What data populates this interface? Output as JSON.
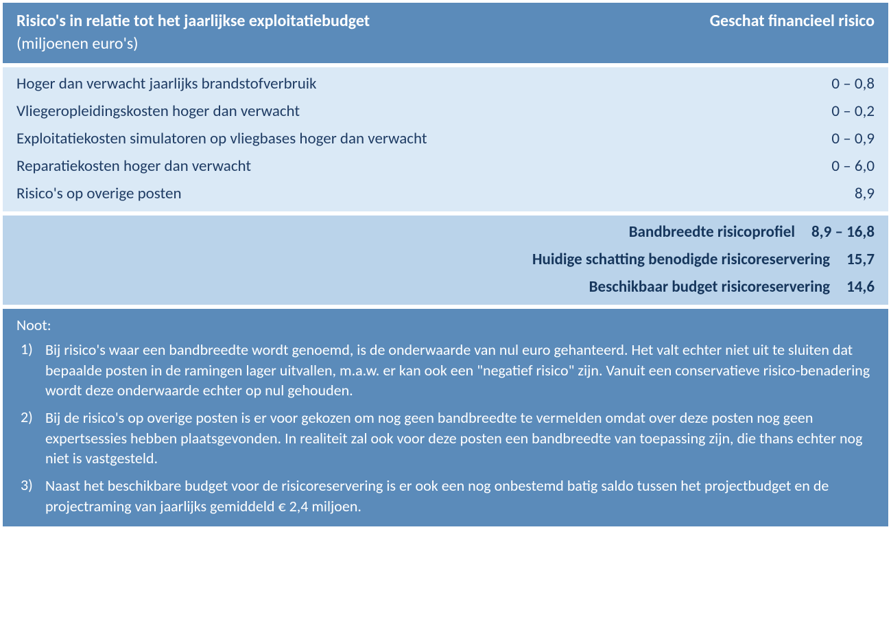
{
  "colors": {
    "band_dark": "#5b8bba",
    "band_light": "#dae9f6",
    "band_mid": "#bad3ea",
    "text_dark": "#1f3c64",
    "text_summary": "#16365c",
    "text_on_dark": "#ffffff"
  },
  "typography": {
    "font_family": "Calibri",
    "header_fontsize_pt": 18,
    "body_fontsize_pt": 17,
    "footer_fontsize_pt": 16
  },
  "header": {
    "title": "Risico's in relatie tot het jaarlijkse exploitatiebudget",
    "subtitle": "(miljoenen euro's)",
    "right": "Geschat financieel risico"
  },
  "risks": [
    {
      "label": "Hoger dan verwacht jaarlijks brandstofverbruik",
      "value": "0 – 0,8"
    },
    {
      "label": "Vliegeropleidingskosten hoger dan verwacht",
      "value": "0 – 0,2"
    },
    {
      "label": "Exploitatiekosten simulatoren op vliegbases hoger dan verwacht",
      "value": "0 – 0,9"
    },
    {
      "label": "Reparatiekosten hoger dan verwacht",
      "value": "0 – 6,0"
    },
    {
      "label": "Risico's op overige posten",
      "value": "8,9"
    }
  ],
  "summary": [
    {
      "label": "Bandbreedte risicoprofiel",
      "value": "8,9 – 16,8"
    },
    {
      "label": "Huidige schatting benodigde risicoreservering",
      "value": "15,7"
    },
    {
      "label": "Beschikbaar budget risicoreservering",
      "value": "14,6"
    }
  ],
  "footer": {
    "title": "Noot:",
    "notes": [
      {
        "num": "1)",
        "text": "Bij risico's waar een bandbreedte wordt genoemd, is de onderwaarde van nul euro gehanteerd. Het valt echter niet uit te sluiten dat bepaalde posten in de ramingen lager uitvallen, m.a.w. er kan ook een \"negatief risico\" zijn. Vanuit een conservatieve risico-benadering wordt deze onderwaarde echter op nul gehouden."
      },
      {
        "num": "2)",
        "text": "Bij de risico's op overige posten is er voor gekozen om nog geen bandbreedte te vermelden omdat over deze posten nog geen expertsessies hebben plaatsgevonden. In realiteit zal ook voor deze posten een bandbreedte van toepassing zijn, die thans echter nog niet is vastgesteld."
      },
      {
        "num": "3)",
        "text": "Naast het beschikbare budget voor de risicoreservering is er ook een nog onbestemd batig saldo tussen het projectbudget en de projectraming van jaarlijks gemiddeld € 2,4 miljoen."
      }
    ]
  }
}
